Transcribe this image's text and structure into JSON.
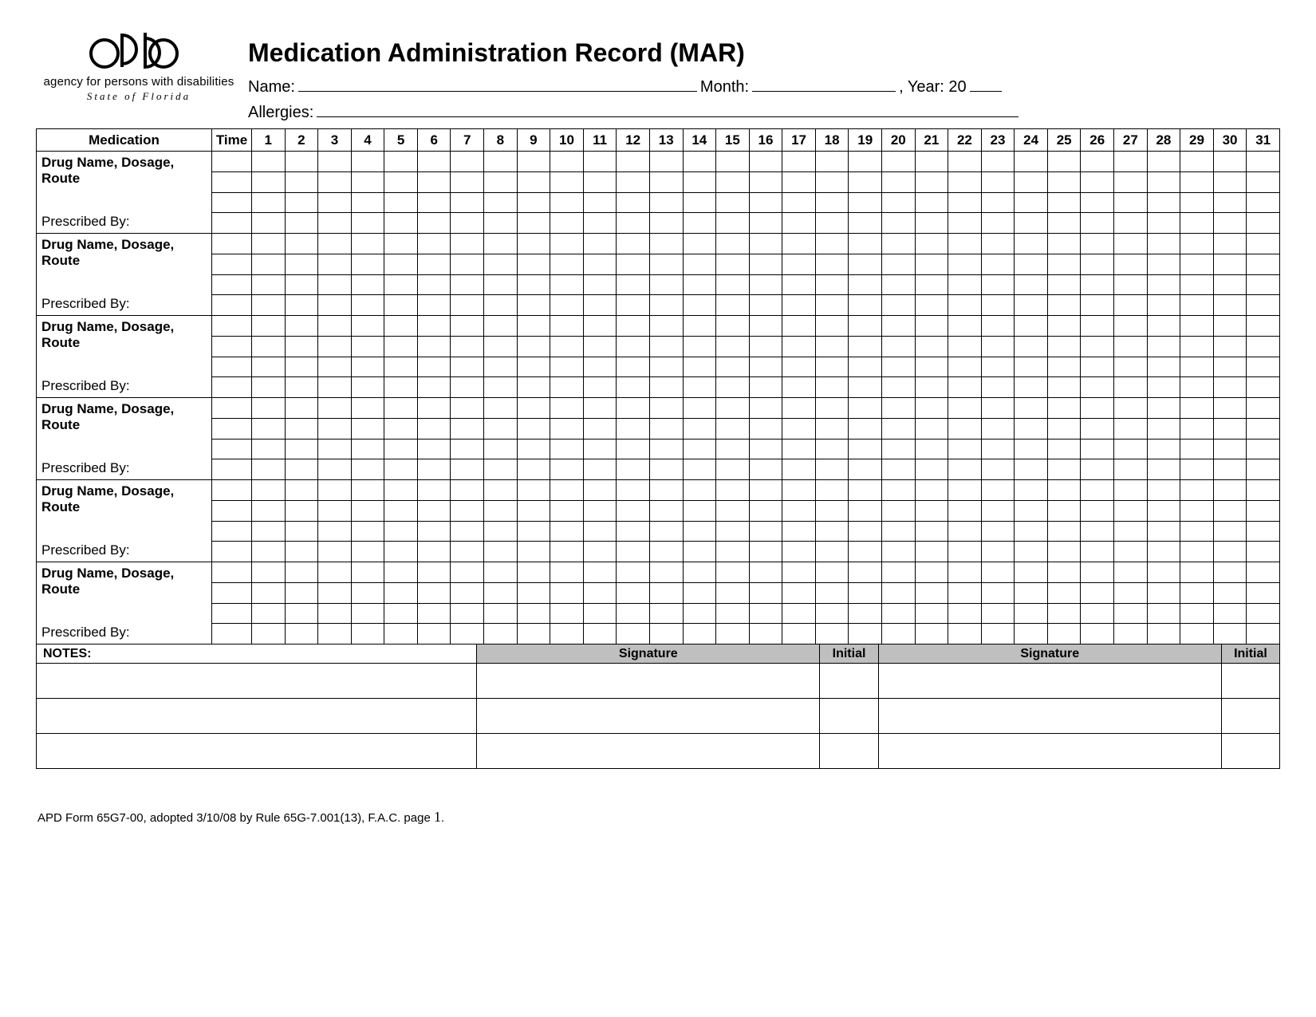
{
  "agency": {
    "line1": "agency for persons with disabilities",
    "line2": "State of Florida"
  },
  "title": "Medication Administration Record (MAR)",
  "fields": {
    "name_label": "Name:",
    "month_label": "Month:",
    "year_label": ", Year:  20",
    "allergies_label": "Allergies:"
  },
  "table": {
    "header_medication": "Medication",
    "header_time": "Time",
    "days": [
      "1",
      "2",
      "3",
      "4",
      "5",
      "6",
      "7",
      "8",
      "9",
      "10",
      "11",
      "12",
      "13",
      "14",
      "15",
      "16",
      "17",
      "18",
      "19",
      "20",
      "21",
      "22",
      "23",
      "24",
      "25",
      "26",
      "27",
      "28",
      "29",
      "30",
      "31"
    ],
    "drug_label": "Drug Name, Dosage, Route",
    "prescribed_label": "Prescribed By:",
    "medication_blocks": 6,
    "rows_per_block": 4
  },
  "notes": {
    "notes_label": "NOTES:",
    "signature_label": "Signature",
    "initial_label": "Initial",
    "rows": 3
  },
  "footer": {
    "text_a": "APD Form 65G7-00, adopted 3/10/08 by Rule 65G-7.001(13), F.A.C.  page ",
    "page": "1",
    "text_b": "."
  },
  "colors": {
    "background": "#ffffff",
    "text": "#000000",
    "border": "#000000",
    "shade": "#bfbfbf"
  }
}
